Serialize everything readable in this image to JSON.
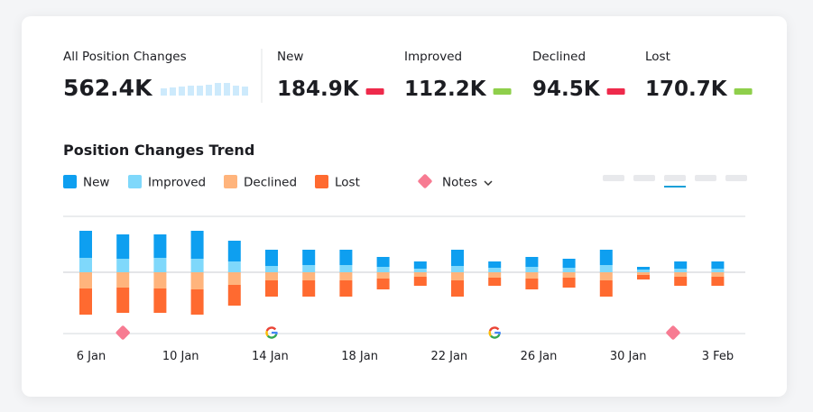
{
  "summary": {
    "label": "All Position Changes",
    "value": "562.4K",
    "sparkline": [
      8,
      9,
      10,
      11,
      11,
      12,
      14,
      14,
      11,
      10
    ],
    "sparkline_color": "#cdeafc"
  },
  "kpis": [
    {
      "label": "New",
      "value": "184.9K",
      "color": "#ee2a4b"
    },
    {
      "label": "Improved",
      "value": "112.2K",
      "color": "#8fcf4b"
    },
    {
      "label": "Declined",
      "value": "94.5K",
      "color": "#ee2a4b"
    },
    {
      "label": "Lost",
      "value": "170.7K",
      "color": "#8fcf4b"
    }
  ],
  "chart_data": {
    "type": "stacked_bar",
    "title": "Position Changes Trend",
    "categories": [
      null,
      null,
      null,
      null,
      null,
      null,
      null,
      null,
      null,
      null,
      null,
      null,
      null,
      null,
      null,
      null,
      null,
      null
    ],
    "x_labels": [
      "6 Jan",
      "10 Jan",
      "14 Jan",
      "18 Jan",
      "22 Jan",
      "26 Jan",
      "30 Jan",
      "3 Feb"
    ],
    "series": [
      {
        "name": "New",
        "color": "#0e9ff0",
        "values": [
          30,
          27,
          26,
          31,
          23,
          18,
          17,
          17,
          11,
          8,
          18,
          7,
          11,
          10,
          17,
          3,
          8,
          8
        ]
      },
      {
        "name": "Improved",
        "color": "#7fd8fb",
        "values": [
          16,
          15,
          16,
          15,
          12,
          7,
          8,
          8,
          6,
          4,
          7,
          5,
          6,
          5,
          8,
          3,
          4,
          4
        ]
      },
      {
        "name": "Declined",
        "color": "#ffb47c",
        "values": [
          -18,
          -17,
          -18,
          -19,
          -14,
          -9,
          -9,
          -9,
          -7,
          -5,
          -9,
          -6,
          -7,
          -6,
          -9,
          -3,
          -5,
          -5
        ]
      },
      {
        "name": "Lost",
        "color": "#ff6a30",
        "values": [
          -29,
          -28,
          -27,
          -28,
          -23,
          -18,
          -18,
          -18,
          -12,
          -10,
          -18,
          -9,
          -12,
          -11,
          -18,
          -5,
          -10,
          -10
        ]
      }
    ],
    "ylim": [
      -68,
      62
    ],
    "yticks": [
      -68,
      0,
      62
    ],
    "notes_label": "Notes",
    "annotations": [
      {
        "kind": "note",
        "at": 1
      },
      {
        "kind": "google",
        "at": 5
      },
      {
        "kind": "google",
        "at": 11
      },
      {
        "kind": "note",
        "at": 15.8
      }
    ]
  }
}
